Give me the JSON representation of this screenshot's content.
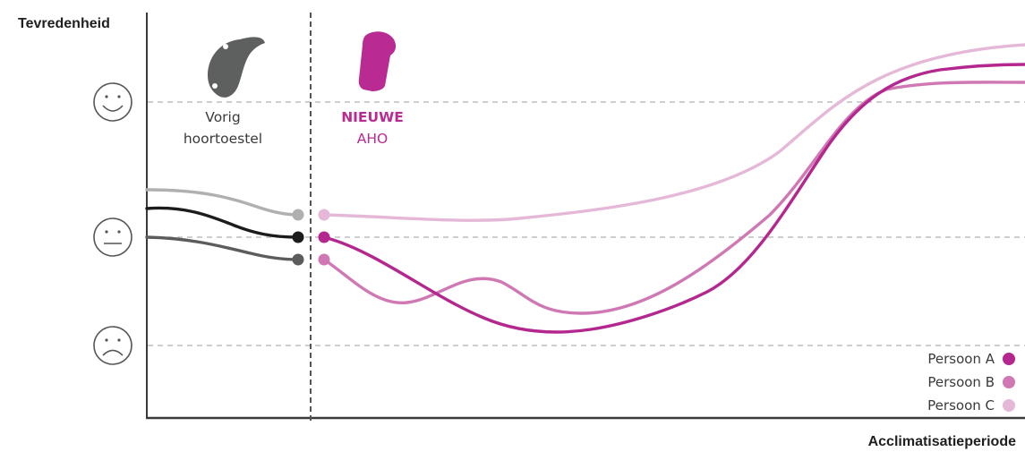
{
  "chart_data": {
    "type": "line",
    "ylabel": "Tevredenheid",
    "xlabel": "Acclimatisatieperiode",
    "y_ticks": [
      "happy",
      "neutral",
      "sad"
    ],
    "sections": {
      "previous": {
        "line1": "Vorig",
        "line2": "hoortoestel"
      },
      "new": {
        "line1": "NIEUWE",
        "line2": "AHO"
      }
    },
    "colors": {
      "persoon_a": "#b3278f",
      "persoon_b": "#cf78b3",
      "persoon_c": "#e5b8d7",
      "prev_a": "#1c1c1c",
      "prev_b": "#5c5c5c",
      "prev_c": "#b0b0b0",
      "divider": "#555555",
      "grid": "#bdbdbd",
      "device_prev": "#5e6060",
      "device_new": "#b92a92",
      "label_new": "#b92a92"
    },
    "series": [
      {
        "name": "Persoon A",
        "color": "#b3278f"
      },
      {
        "name": "Persoon B",
        "color": "#cf78b3"
      },
      {
        "name": "Persoon C",
        "color": "#e5b8d7"
      }
    ],
    "legend_placement": "bottom-right",
    "grid": true
  }
}
